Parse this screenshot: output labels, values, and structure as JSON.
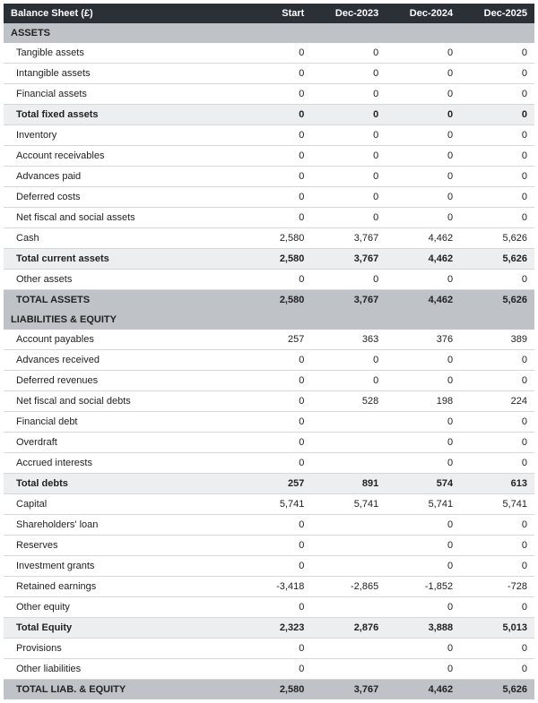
{
  "title": "Balance Sheet (£)",
  "columns": [
    "Start",
    "Dec-2023",
    "Dec-2024",
    "Dec-2025"
  ],
  "sections": [
    {
      "header": "ASSETS",
      "rows": [
        {
          "label": "Tangible assets",
          "values": [
            "0",
            "0",
            "0",
            "0"
          ],
          "indent": true
        },
        {
          "label": "Intangible assets",
          "values": [
            "0",
            "0",
            "0",
            "0"
          ],
          "indent": true
        },
        {
          "label": "Financial assets",
          "values": [
            "0",
            "0",
            "0",
            "0"
          ],
          "indent": true
        },
        {
          "label": "Total fixed assets",
          "values": [
            "0",
            "0",
            "0",
            "0"
          ],
          "indent": true,
          "style": "subtotal"
        },
        {
          "label": "Inventory",
          "values": [
            "0",
            "0",
            "0",
            "0"
          ],
          "indent": true
        },
        {
          "label": "Account receivables",
          "values": [
            "0",
            "0",
            "0",
            "0"
          ],
          "indent": true
        },
        {
          "label": "Advances paid",
          "values": [
            "0",
            "0",
            "0",
            "0"
          ],
          "indent": true
        },
        {
          "label": "Deferred costs",
          "values": [
            "0",
            "0",
            "0",
            "0"
          ],
          "indent": true
        },
        {
          "label": "Net fiscal and social assets",
          "values": [
            "0",
            "0",
            "0",
            "0"
          ],
          "indent": true
        },
        {
          "label": "Cash",
          "values": [
            "2,580",
            "3,767",
            "4,462",
            "5,626"
          ],
          "indent": true
        },
        {
          "label": "Total current assets",
          "values": [
            "2,580",
            "3,767",
            "4,462",
            "5,626"
          ],
          "indent": true,
          "style": "subtotal"
        },
        {
          "label": "Other assets",
          "values": [
            "0",
            "0",
            "0",
            "0"
          ],
          "indent": true
        },
        {
          "label": "TOTAL ASSETS",
          "values": [
            "2,580",
            "3,767",
            "4,462",
            "5,626"
          ],
          "indent": true,
          "style": "grandtotal"
        }
      ]
    },
    {
      "header": "LIABILITIES & EQUITY",
      "rows": [
        {
          "label": "Account payables",
          "values": [
            "257",
            "363",
            "376",
            "389"
          ],
          "indent": true
        },
        {
          "label": "Advances received",
          "values": [
            "0",
            "0",
            "0",
            "0"
          ],
          "indent": true
        },
        {
          "label": "Deferred revenues",
          "values": [
            "0",
            "0",
            "0",
            "0"
          ],
          "indent": true
        },
        {
          "label": "Net fiscal and social debts",
          "values": [
            "0",
            "528",
            "198",
            "224"
          ],
          "indent": true
        },
        {
          "label": "Financial debt",
          "values": [
            "0",
            "",
            "0",
            "0"
          ],
          "indent": true
        },
        {
          "label": "Overdraft",
          "values": [
            "0",
            "",
            "0",
            "0"
          ],
          "indent": true
        },
        {
          "label": "Accrued interests",
          "values": [
            "0",
            "",
            "0",
            "0"
          ],
          "indent": true
        },
        {
          "label": "Total debts",
          "values": [
            "257",
            "891",
            "574",
            "613"
          ],
          "indent": true,
          "style": "subtotal"
        },
        {
          "label": "Capital",
          "values": [
            "5,741",
            "5,741",
            "5,741",
            "5,741"
          ],
          "indent": true
        },
        {
          "label": "Shareholders' loan",
          "values": [
            "0",
            "",
            "0",
            "0"
          ],
          "indent": true
        },
        {
          "label": "Reserves",
          "values": [
            "0",
            "",
            "0",
            "0"
          ],
          "indent": true
        },
        {
          "label": "Investment grants",
          "values": [
            "0",
            "",
            "0",
            "0"
          ],
          "indent": true
        },
        {
          "label": "Retained earnings",
          "values": [
            "-3,418",
            "-2,865",
            "-1,852",
            "-728"
          ],
          "indent": true
        },
        {
          "label": "Other equity",
          "values": [
            "0",
            "",
            "0",
            "0"
          ],
          "indent": true
        },
        {
          "label": "Total Equity",
          "values": [
            "2,323",
            "2,876",
            "3,888",
            "5,013"
          ],
          "indent": true,
          "style": "subtotal"
        },
        {
          "label": "Provisions",
          "values": [
            "0",
            "",
            "0",
            "0"
          ],
          "indent": true
        },
        {
          "label": "Other liabilities",
          "values": [
            "0",
            "",
            "0",
            "0"
          ],
          "indent": true
        },
        {
          "label": "TOTAL LIAB. & EQUITY",
          "values": [
            "2,580",
            "3,767",
            "4,462",
            "5,626"
          ],
          "indent": true,
          "style": "grandtotal"
        }
      ]
    }
  ],
  "colors": {
    "header_bg": "#2b2f36",
    "header_fg": "#ffffff",
    "section_bg": "#bfc3c8",
    "subtotal_bg": "#eceef0",
    "row_border": "#d8d8d8"
  }
}
